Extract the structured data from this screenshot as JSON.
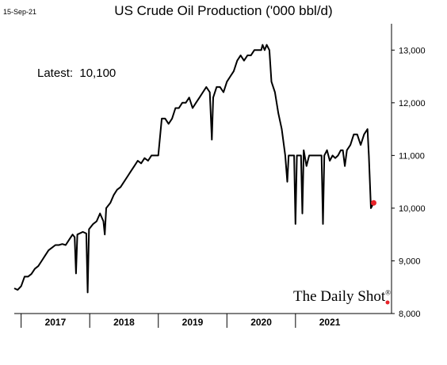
{
  "header": {
    "date": "15-Sep-21",
    "title": "US Crude Oil Production ('000 bbl/d)"
  },
  "annotation": {
    "latest_label": "Latest:",
    "latest_value": "10,100"
  },
  "branding": {
    "name": "The Daily Shot",
    "mark": "®"
  },
  "colors": {
    "line": "#000000",
    "latest_marker": "#e8242a",
    "axis": "#000000"
  },
  "chart_data": {
    "type": "line",
    "title": "US Crude Oil Production ('000 bbl/d)",
    "xlabel": "",
    "ylabel": "",
    "ylim": [
      8000,
      13500
    ],
    "xlim": [
      2016.4,
      2021.9
    ],
    "y_ticks": [
      8000,
      9000,
      10000,
      11000,
      12000,
      13000
    ],
    "y_tick_labels": [
      "8,000",
      "9,000",
      "10,000",
      "11,000",
      "12,000",
      "13,000"
    ],
    "x_year_labels": [
      {
        "label": "2017",
        "center": 2017.0
      },
      {
        "label": "2018",
        "center": 2018.0
      },
      {
        "label": "2019",
        "center": 2019.0
      },
      {
        "label": "2020",
        "center": 2020.0
      },
      {
        "label": "2021",
        "center": 2021.0
      }
    ],
    "x_separators": [
      2016.5,
      2017.5,
      2018.5,
      2019.5,
      2020.5
    ],
    "grid": false,
    "y_axis_side": "right",
    "series": [
      {
        "values": [
          [
            2016.4,
            8480
          ],
          [
            2016.45,
            8450
          ],
          [
            2016.5,
            8520
          ],
          [
            2016.55,
            8700
          ],
          [
            2016.6,
            8700
          ],
          [
            2016.65,
            8750
          ],
          [
            2016.7,
            8850
          ],
          [
            2016.75,
            8900
          ],
          [
            2016.8,
            9000
          ],
          [
            2016.85,
            9100
          ],
          [
            2016.9,
            9200
          ],
          [
            2016.95,
            9250
          ],
          [
            2017.0,
            9300
          ],
          [
            2017.05,
            9300
          ],
          [
            2017.1,
            9320
          ],
          [
            2017.15,
            9300
          ],
          [
            2017.2,
            9400
          ],
          [
            2017.25,
            9500
          ],
          [
            2017.28,
            9450
          ],
          [
            2017.3,
            8760
          ],
          [
            2017.32,
            9500
          ],
          [
            2017.4,
            9550
          ],
          [
            2017.45,
            9520
          ],
          [
            2017.47,
            8400
          ],
          [
            2017.49,
            9600
          ],
          [
            2017.55,
            9700
          ],
          [
            2017.6,
            9750
          ],
          [
            2017.65,
            9900
          ],
          [
            2017.7,
            9750
          ],
          [
            2017.72,
            9500
          ],
          [
            2017.74,
            10000
          ],
          [
            2017.8,
            10100
          ],
          [
            2017.85,
            10250
          ],
          [
            2017.9,
            10350
          ],
          [
            2017.95,
            10400
          ],
          [
            2018.0,
            10500
          ],
          [
            2018.05,
            10600
          ],
          [
            2018.1,
            10700
          ],
          [
            2018.15,
            10800
          ],
          [
            2018.2,
            10900
          ],
          [
            2018.25,
            10850
          ],
          [
            2018.3,
            10950
          ],
          [
            2018.35,
            10900
          ],
          [
            2018.4,
            11000
          ],
          [
            2018.45,
            11000
          ],
          [
            2018.5,
            11000
          ],
          [
            2018.55,
            11700
          ],
          [
            2018.6,
            11700
          ],
          [
            2018.65,
            11600
          ],
          [
            2018.7,
            11700
          ],
          [
            2018.75,
            11900
          ],
          [
            2018.8,
            11900
          ],
          [
            2018.85,
            12000
          ],
          [
            2018.9,
            12000
          ],
          [
            2018.95,
            12100
          ],
          [
            2019.0,
            11900
          ],
          [
            2019.05,
            12000
          ],
          [
            2019.1,
            12100
          ],
          [
            2019.15,
            12200
          ],
          [
            2019.2,
            12300
          ],
          [
            2019.25,
            12200
          ],
          [
            2019.28,
            11300
          ],
          [
            2019.3,
            12100
          ],
          [
            2019.35,
            12300
          ],
          [
            2019.4,
            12300
          ],
          [
            2019.45,
            12200
          ],
          [
            2019.5,
            12400
          ],
          [
            2019.55,
            12500
          ],
          [
            2019.6,
            12600
          ],
          [
            2019.65,
            12800
          ],
          [
            2019.7,
            12900
          ],
          [
            2019.75,
            12800
          ],
          [
            2019.8,
            12900
          ],
          [
            2019.85,
            12900
          ],
          [
            2019.9,
            13000
          ],
          [
            2019.95,
            13000
          ],
          [
            2020.0,
            13000
          ],
          [
            2020.02,
            13100
          ],
          [
            2020.05,
            13000
          ],
          [
            2020.08,
            13100
          ],
          [
            2020.12,
            13000
          ],
          [
            2020.15,
            12400
          ],
          [
            2020.2,
            12200
          ],
          [
            2020.25,
            11800
          ],
          [
            2020.3,
            11500
          ],
          [
            2020.35,
            11000
          ],
          [
            2020.38,
            10500
          ],
          [
            2020.4,
            11000
          ],
          [
            2020.45,
            11000
          ],
          [
            2020.48,
            11000
          ],
          [
            2020.5,
            9700
          ],
          [
            2020.52,
            11000
          ],
          [
            2020.55,
            11000
          ],
          [
            2020.58,
            11000
          ],
          [
            2020.6,
            9900
          ],
          [
            2020.62,
            11100
          ],
          [
            2020.66,
            10800
          ],
          [
            2020.7,
            11000
          ],
          [
            2020.75,
            11000
          ],
          [
            2020.8,
            11000
          ],
          [
            2020.85,
            11000
          ],
          [
            2020.88,
            11000
          ],
          [
            2020.9,
            9700
          ],
          [
            2020.92,
            11000
          ],
          [
            2020.96,
            11100
          ],
          [
            2021.0,
            10900
          ],
          [
            2021.04,
            11000
          ],
          [
            2021.08,
            10950
          ],
          [
            2021.12,
            11000
          ],
          [
            2021.16,
            11100
          ],
          [
            2021.19,
            11100
          ],
          [
            2021.22,
            10800
          ],
          [
            2021.25,
            11100
          ],
          [
            2021.3,
            11200
          ],
          [
            2021.35,
            11400
          ],
          [
            2021.4,
            11400
          ],
          [
            2021.45,
            11200
          ],
          [
            2021.5,
            11400
          ],
          [
            2021.55,
            11500
          ],
          [
            2021.57,
            11000
          ],
          [
            2021.6,
            10000
          ],
          [
            2021.64,
            10100
          ]
        ]
      }
    ],
    "latest_point": [
      2021.64,
      10100
    ]
  }
}
